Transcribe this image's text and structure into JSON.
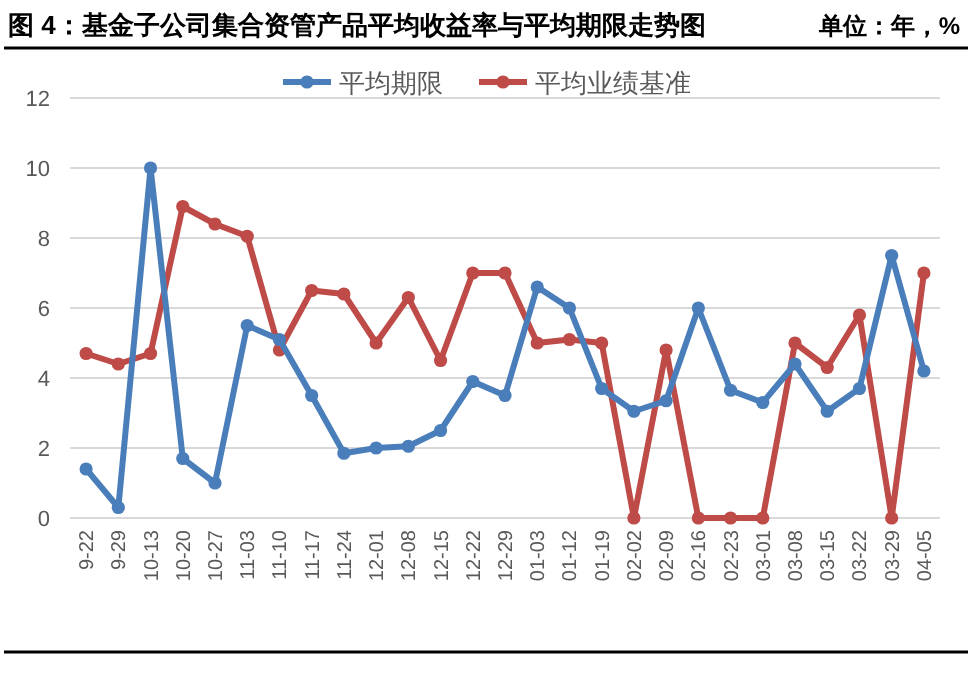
{
  "chart_data": {
    "type": "line",
    "title": "图 4：基金子公司集合资管产品平均收益率与平均期限走势图",
    "annotations": [
      "单位：年，%"
    ],
    "categories": [
      "9-22",
      "9-29",
      "10-13",
      "10-20",
      "10-27",
      "11-03",
      "11-10",
      "11-17",
      "11-24",
      "12-01",
      "12-08",
      "12-15",
      "12-22",
      "12-29",
      "01-03",
      "01-12",
      "01-19",
      "02-02",
      "02-09",
      "02-16",
      "02-23",
      "03-01",
      "03-08",
      "03-15",
      "03-22",
      "03-29",
      "04-05"
    ],
    "series": [
      {
        "name": "平均期限",
        "color": "#4a7ebb",
        "values": [
          1.4,
          0.3,
          10,
          1.7,
          1.0,
          5.5,
          5.1,
          3.5,
          1.85,
          2.0,
          2.05,
          2.5,
          3.9,
          3.5,
          6.6,
          6.0,
          3.7,
          3.05,
          3.35,
          6.0,
          3.65,
          3.3,
          4.4,
          3.05,
          3.7,
          7.5,
          4.2
        ]
      },
      {
        "name": "平均业绩基准",
        "color": "#be4b48",
        "values": [
          4.7,
          4.4,
          4.7,
          8.9,
          8.4,
          8.05,
          4.8,
          6.5,
          6.4,
          5.0,
          6.3,
          4.5,
          7.0,
          7.0,
          5.0,
          5.1,
          5.0,
          0,
          4.8,
          0,
          0,
          0,
          5.0,
          4.3,
          5.8,
          0,
          7.0
        ]
      }
    ],
    "ylim": [
      0,
      12
    ],
    "yticks": [
      0,
      2,
      4,
      6,
      8,
      10,
      12
    ],
    "grid": "y",
    "legend": "top",
    "marker": "circle",
    "line_style": "solid"
  }
}
